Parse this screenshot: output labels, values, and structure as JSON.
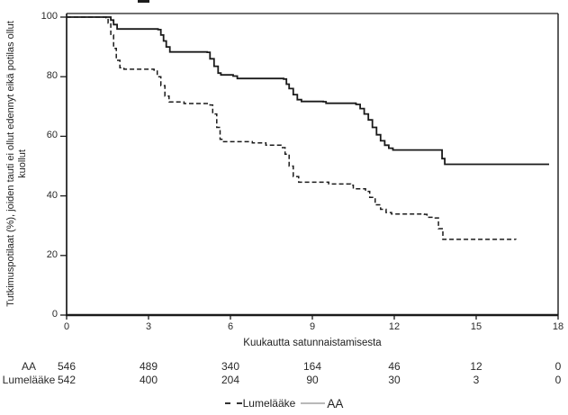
{
  "figure": {
    "cropped_title_fragment_present": true,
    "background_color": "#ffffff",
    "line_color": "#1a1a1a",
    "legend_aa_swatch_color": "#b9b9b9"
  },
  "chart_data": {
    "type": "line",
    "subtype": "kaplan-meier-step",
    "title": "",
    "xlabel": "Kuukautta satunnaistamisesta",
    "ylabel_lines": [
      "Tutkimuspotilaat (%), joiden tauti ei ollut edennyt eikä potilas ollut",
      "kuollut"
    ],
    "xlim": [
      0,
      18
    ],
    "ylim": [
      0,
      100
    ],
    "x_ticks": [
      0,
      3,
      6,
      9,
      12,
      15,
      18
    ],
    "y_ticks": [
      100,
      80,
      60,
      40,
      20,
      0
    ],
    "grid": false,
    "legend_position": "bottom-center",
    "legend_order": [
      "Lumelääke",
      "AA"
    ],
    "series": [
      {
        "name": "AA",
        "style": "solid",
        "color": "#1a1a1a",
        "points": [
          [
            0,
            100
          ],
          [
            1.55,
            100
          ],
          [
            1.62,
            99
          ],
          [
            1.72,
            97.5
          ],
          [
            1.85,
            96
          ],
          [
            3.35,
            95.8
          ],
          [
            3.45,
            94
          ],
          [
            3.55,
            92
          ],
          [
            3.65,
            90
          ],
          [
            3.78,
            88.3
          ],
          [
            5.15,
            88.2
          ],
          [
            5.25,
            86
          ],
          [
            5.4,
            83.5
          ],
          [
            5.55,
            81.2
          ],
          [
            5.65,
            80.6
          ],
          [
            6.1,
            80.2
          ],
          [
            6.25,
            79.4
          ],
          [
            7.95,
            79.2
          ],
          [
            8.05,
            77.5
          ],
          [
            8.15,
            76
          ],
          [
            8.3,
            74
          ],
          [
            8.45,
            72.3
          ],
          [
            8.6,
            71.7
          ],
          [
            9.4,
            71.6
          ],
          [
            9.5,
            71.1
          ],
          [
            10.6,
            70.7
          ],
          [
            10.75,
            69.3
          ],
          [
            10.9,
            67.5
          ],
          [
            11.05,
            65.5
          ],
          [
            11.2,
            63
          ],
          [
            11.35,
            60.5
          ],
          [
            11.5,
            58.5
          ],
          [
            11.65,
            57
          ],
          [
            11.8,
            56
          ],
          [
            11.95,
            55.4
          ],
          [
            13.65,
            55.4
          ],
          [
            13.75,
            52.5
          ],
          [
            13.85,
            50.6
          ],
          [
            17.67,
            50.6
          ]
        ]
      },
      {
        "name": "Lumelääke",
        "style": "dashed",
        "color": "#1a1a1a",
        "points": [
          [
            0,
            100
          ],
          [
            1.45,
            99.8
          ],
          [
            1.52,
            98
          ],
          [
            1.62,
            94
          ],
          [
            1.72,
            89.5
          ],
          [
            1.82,
            85.5
          ],
          [
            1.95,
            83
          ],
          [
            2.1,
            82.5
          ],
          [
            3.2,
            82.2
          ],
          [
            3.32,
            80
          ],
          [
            3.45,
            77
          ],
          [
            3.6,
            73.5
          ],
          [
            3.75,
            71.5
          ],
          [
            4.3,
            71
          ],
          [
            5.25,
            70.5
          ],
          [
            5.35,
            67.5
          ],
          [
            5.5,
            63
          ],
          [
            5.62,
            59
          ],
          [
            5.75,
            58.2
          ],
          [
            6.8,
            57.8
          ],
          [
            7.3,
            57
          ],
          [
            7.85,
            56.2
          ],
          [
            8.0,
            54
          ],
          [
            8.15,
            50
          ],
          [
            8.3,
            46.5
          ],
          [
            8.5,
            44.6
          ],
          [
            9.6,
            44
          ],
          [
            10.4,
            43.6
          ],
          [
            10.5,
            42.4
          ],
          [
            10.95,
            41.5
          ],
          [
            11.1,
            39.5
          ],
          [
            11.3,
            37
          ],
          [
            11.5,
            35.5
          ],
          [
            11.7,
            34.4
          ],
          [
            11.9,
            33.9
          ],
          [
            13.1,
            33.8
          ],
          [
            13.2,
            32.8
          ],
          [
            13.5,
            32.6
          ],
          [
            13.62,
            29
          ],
          [
            13.78,
            25.4
          ],
          [
            16.45,
            25.3
          ]
        ]
      }
    ],
    "at_risk_table": {
      "rows": [
        {
          "label": "AA",
          "counts": [
            "546",
            "489",
            "340",
            "164",
            "46",
            "12",
            "0"
          ]
        },
        {
          "label": "Lumelääke",
          "counts": [
            "542",
            "400",
            "204",
            "90",
            "30",
            "3",
            "0"
          ]
        }
      ]
    }
  }
}
